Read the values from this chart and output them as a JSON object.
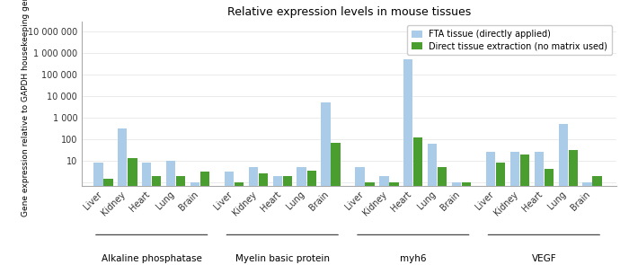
{
  "title": "Relative expression levels in mouse tissues",
  "ylabel": "Gene expression relative to GAPDH housekeeping gene",
  "legend_fta": "FTA tissue (directly applied)",
  "legend_direct": "Direct tissue extraction (no matrix used)",
  "color_fta": "#aacce8",
  "color_direct": "#4a9e2f",
  "groups": [
    "Alkaline phosphatase",
    "Myelin basic protein",
    "myh6",
    "VEGF"
  ],
  "tissues": [
    "Liver",
    "Kidney",
    "Heart",
    "Lung",
    "Brain"
  ],
  "fta_values": [
    [
      8,
      300,
      8,
      10,
      1
    ],
    [
      3,
      5,
      2,
      5,
      5000
    ],
    [
      5,
      2,
      500000,
      60,
      1
    ],
    [
      25,
      25,
      25,
      500,
      1
    ]
  ],
  "direct_values": [
    [
      1.5,
      13,
      2,
      2,
      3
    ],
    [
      1,
      2.5,
      2,
      3.5,
      70
    ],
    [
      1,
      1,
      120,
      5,
      1
    ],
    [
      8,
      20,
      4,
      30,
      2
    ]
  ],
  "yticks": [
    1,
    10,
    100,
    1000,
    10000,
    100000,
    1000000,
    10000000
  ],
  "ytick_labels": [
    "",
    "10",
    "100",
    "1 000",
    "10 000",
    "100 000",
    "1 000 000",
    "10 000 000"
  ],
  "ymin": 0.7,
  "ymax": 30000000
}
